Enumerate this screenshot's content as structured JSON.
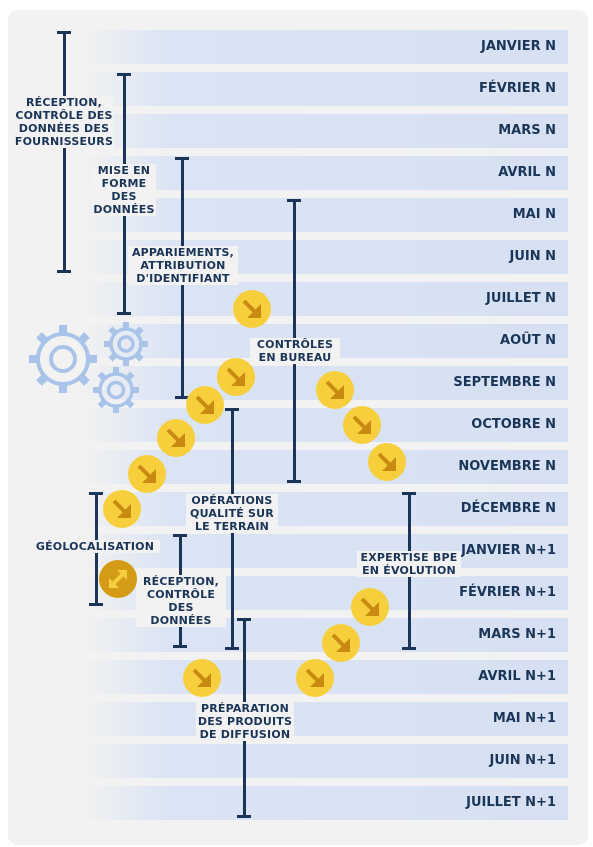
{
  "months": [
    "JANVIER N",
    "FÉVRIER N",
    "MARS N",
    "AVRIL N",
    "MAI N",
    "JUIN N",
    "JUILLET N",
    "AOÛT N",
    "SEPTEMBRE N",
    "OCTOBRE N",
    "NOVEMBRE N",
    "DÉCEMBRE N",
    "JANVIER N+1",
    "FÉVRIER N+1",
    "MARS N+1",
    "AVRIL N+1",
    "MAI N+1",
    "JUIN N+1",
    "JUILLET N+1"
  ],
  "phases": {
    "reception": "RÉCEPTION, CONTRÔLE DES DONNÉES DES FOURNISSEURS",
    "mise_en_forme": "MISE EN FORME DES DONNÉES",
    "appariements": "APPARIEMENTS, ATTRIBUTION D'IDENTIFIANT",
    "controles": "CONTRÔLES EN BUREAU",
    "operations": "OPÉRATIONS QUALITÉ SUR LE TERRAIN",
    "geolocalisation": "GÉOLOCALISATION",
    "reception2": "RÉCEPTION, CONTRÔLE DES DONNÉES",
    "expertise": "EXPERTISE BPE EN ÉVOLUTION",
    "preparation": "PRÉPARATION DES PRODUITS DE DIFFUSION"
  },
  "icons": {
    "gears": "gears-icon",
    "arrow": "arrow-down-right-icon",
    "geolocation": "geolocation-icon"
  },
  "colors": {
    "navy": "#1a3557",
    "row": "#d5e0f2",
    "arrow_circle": "#f7cf3d",
    "geo_circle": "#d49b17",
    "gear": "#a9c4e8"
  }
}
